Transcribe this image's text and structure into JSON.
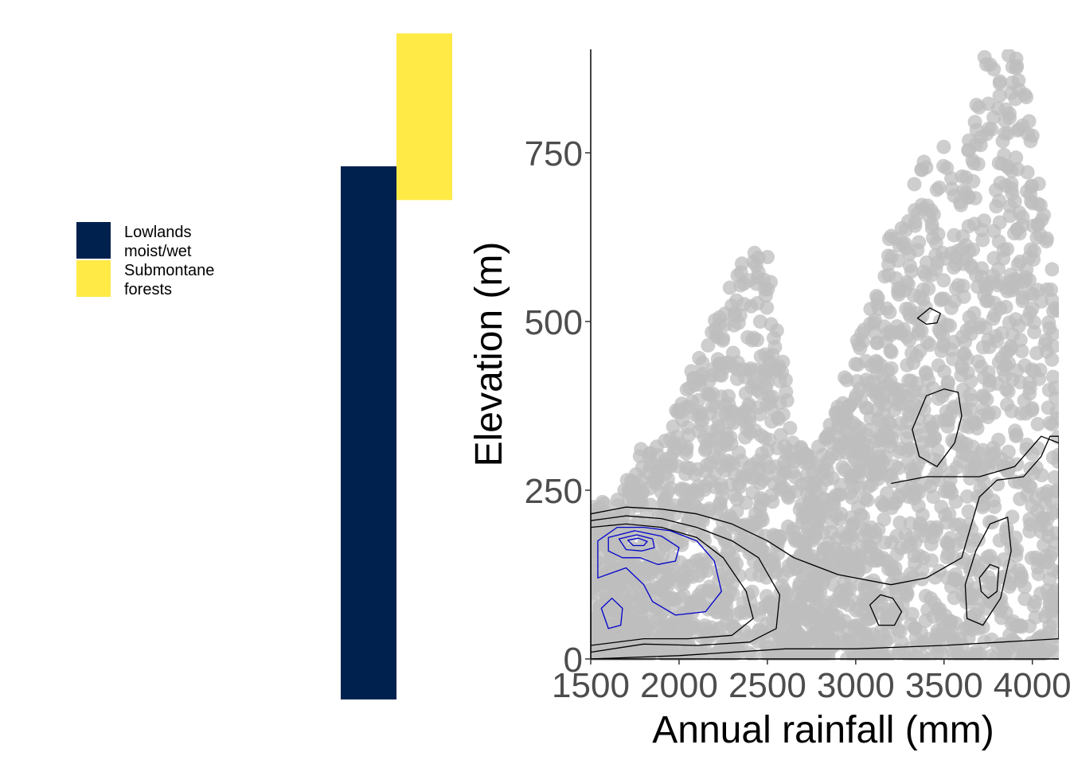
{
  "legend": {
    "items": [
      {
        "label_line1": "Lowlands",
        "label_line2": "moist/wet",
        "color": "#00204D"
      },
      {
        "label_line1": "Submontane",
        "label_line2": "forests",
        "color": "#FFEA46"
      }
    ]
  },
  "chart_data": [
    {
      "type": "bar",
      "description_role": "elevation ranges per forest class (floating bars sharing the elevation axis)",
      "categories": [
        "Lowlands moist/wet",
        "Submontane forests"
      ],
      "series": [
        {
          "name": "Lowlands moist/wet",
          "color": "#00204D",
          "range": [
            -60,
            730
          ]
        },
        {
          "name": "Submontane forests",
          "color": "#FFEA46",
          "range": [
            680,
            927
          ]
        }
      ]
    },
    {
      "type": "scatter",
      "title": "",
      "xlabel": "Annual rainfall (mm)",
      "ylabel": "Elevation (m)",
      "xlim": [
        1500,
        4150
      ],
      "ylim": [
        0,
        900
      ],
      "xticks": [
        "1500",
        "2000",
        "2500",
        "3000",
        "3500",
        "4000"
      ],
      "yticks": [
        "0",
        "250",
        "500",
        "750"
      ],
      "grid": false,
      "point_color": "#BEBEBE",
      "density_contours": {
        "outer_color": "#000000",
        "inner_color": "#0000CD",
        "levels": [
          {
            "color": "#000000",
            "points": [
              [
                1500,
                215
              ],
              [
                1700,
                225
              ],
              [
                1900,
                222
              ],
              [
                2100,
                215
              ],
              [
                2300,
                200
              ],
              [
                2500,
                175
              ],
              [
                2650,
                150
              ],
              [
                2900,
                125
              ],
              [
                3200,
                110
              ],
              [
                3400,
                120
              ],
              [
                3600,
                150
              ],
              [
                3650,
                195
              ],
              [
                3700,
                240
              ],
              [
                3800,
                265
              ],
              [
                3950,
                270
              ],
              [
                4050,
                300
              ],
              [
                4100,
                330
              ],
              [
                4150,
                330
              ],
              [
                4150,
                30
              ],
              [
                3500,
                20
              ],
              [
                3000,
                15
              ],
              [
                2600,
                15
              ],
              [
                2000,
                5
              ],
              [
                1500,
                0
              ]
            ]
          },
          {
            "color": "#000000",
            "points": [
              [
                1500,
                205
              ],
              [
                1700,
                212
              ],
              [
                1900,
                208
              ],
              [
                2100,
                195
              ],
              [
                2300,
                175
              ],
              [
                2450,
                150
              ],
              [
                2570,
                95
              ],
              [
                2550,
                45
              ],
              [
                2400,
                25
              ],
              [
                2100,
                20
              ],
              [
                1800,
                22
              ],
              [
                1500,
                10
              ]
            ]
          },
          {
            "color": "#000000",
            "points": [
              [
                1500,
                195
              ],
              [
                1700,
                200
              ],
              [
                1900,
                195
              ],
              [
                2100,
                180
              ],
              [
                2250,
                150
              ],
              [
                2380,
                100
              ],
              [
                2420,
                60
              ],
              [
                2300,
                35
              ],
              [
                2050,
                30
              ],
              [
                1800,
                30
              ],
              [
                1500,
                20
              ]
            ]
          },
          {
            "color": "#000000",
            "points": [
              [
                3080,
                80
              ],
              [
                3140,
                95
              ],
              [
                3210,
                90
              ],
              [
                3260,
                70
              ],
              [
                3220,
                50
              ],
              [
                3130,
                50
              ]
            ]
          },
          {
            "color": "#000000",
            "points": [
              [
                3350,
                505
              ],
              [
                3420,
                520
              ],
              [
                3480,
                512
              ],
              [
                3460,
                498
              ],
              [
                3400,
                496
              ]
            ]
          },
          {
            "color": "#000000",
            "points": [
              [
                3320,
                340
              ],
              [
                3400,
                390
              ],
              [
                3500,
                400
              ],
              [
                3580,
                395
              ],
              [
                3600,
                360
              ],
              [
                3560,
                320
              ],
              [
                3460,
                285
              ],
              [
                3360,
                300
              ]
            ]
          },
          {
            "color": "#000000",
            "points": [
              [
                3620,
                110
              ],
              [
                3680,
                160
              ],
              [
                3760,
                200
              ],
              [
                3860,
                210
              ],
              [
                3880,
                160
              ],
              [
                3820,
                90
              ],
              [
                3720,
                50
              ],
              [
                3630,
                60
              ]
            ]
          },
          {
            "color": "#000000",
            "points": [
              [
                3700,
                120
              ],
              [
                3760,
                140
              ],
              [
                3810,
                135
              ],
              [
                3800,
                100
              ],
              [
                3750,
                90
              ],
              [
                3710,
                100
              ]
            ]
          },
          {
            "color": "#000000",
            "points": [
              [
                3200,
                260
              ],
              [
                3400,
                270
              ],
              [
                3700,
                270
              ],
              [
                3900,
                285
              ],
              [
                4050,
                330
              ],
              [
                4150,
                320
              ]
            ]
          },
          {
            "color": "#0000CD",
            "points": [
              [
                1540,
                175
              ],
              [
                1650,
                195
              ],
              [
                1800,
                195
              ],
              [
                1950,
                190
              ],
              [
                2100,
                175
              ],
              [
                2200,
                145
              ],
              [
                2240,
                100
              ],
              [
                2150,
                70
              ],
              [
                1980,
                65
              ],
              [
                1850,
                85
              ],
              [
                1800,
                110
              ],
              [
                1700,
                135
              ],
              [
                1540,
                120
              ]
            ]
          },
          {
            "color": "#0000CD",
            "points": [
              [
                1600,
                180
              ],
              [
                1750,
                190
              ],
              [
                1900,
                182
              ],
              [
                2000,
                165
              ],
              [
                1980,
                145
              ],
              [
                1880,
                140
              ],
              [
                1780,
                150
              ],
              [
                1680,
                150
              ],
              [
                1600,
                160
              ]
            ]
          },
          {
            "color": "#0000CD",
            "points": [
              [
                1660,
                178
              ],
              [
                1760,
                184
              ],
              [
                1850,
                178
              ],
              [
                1860,
                165
              ],
              [
                1790,
                160
              ],
              [
                1700,
                162
              ]
            ]
          },
          {
            "color": "#0000CD",
            "points": [
              [
                1710,
                176
              ],
              [
                1770,
                179
              ],
              [
                1820,
                174
              ],
              [
                1800,
                168
              ],
              [
                1740,
                168
              ]
            ]
          },
          {
            "color": "#0000CD",
            "points": [
              [
                1560,
                75
              ],
              [
                1620,
                90
              ],
              [
                1680,
                75
              ],
              [
                1670,
                50
              ],
              [
                1600,
                45
              ]
            ]
          }
        ]
      }
    }
  ]
}
